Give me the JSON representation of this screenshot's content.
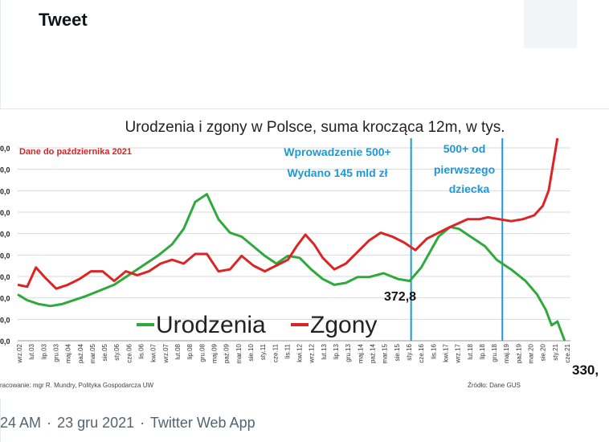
{
  "header": {
    "title": "Tweet"
  },
  "chart_data": {
    "type": "line",
    "title": "Urodzenia i zgony w Polsce, suma krocząca 12m, w tys.",
    "note": "Dane do października 2021",
    "annotations": {
      "policy1": [
        "Wprowadzenie 500+",
        "Wydano 145 mld zł"
      ],
      "policy2": [
        "500+ od",
        "pierwszego",
        "dziecka"
      ],
      "value_low_2016": "372,8",
      "value_end": "330,"
    },
    "x_labels": [
      "wrz.02",
      "lut.03",
      "lip.03",
      "gru.03",
      "maj.04",
      "paź.04",
      "mar.05",
      "sie.05",
      "sty.06",
      "cze.06",
      "lis.06",
      "kwi.07",
      "wrz.07",
      "lut.08",
      "lip.08",
      "gru.08",
      "maj.09",
      "paź.09",
      "mar.10",
      "sie.10",
      "sty.11",
      "cze.11",
      "lis.11",
      "kwi.12",
      "wrz.12",
      "lut.13",
      "lip.13",
      "gru.13",
      "maj.14",
      "paź.14",
      "mar.15",
      "sie.15",
      "sty.16",
      "cze.16",
      "lis.16",
      "kwi.17",
      "wrz.17",
      "lut.18",
      "lip.18",
      "gru.18",
      "maj.19",
      "paź.19",
      "mar.20",
      "sie.20",
      "sty.21",
      "cze.21"
    ],
    "y_tick_labels": [
      "0,0",
      "0,0",
      "0,0",
      "0,0",
      "0,0",
      "0,0",
      "0,0",
      "0,0",
      "0,0",
      "0,0"
    ],
    "x_start": 2002.67,
    "x_end": 2021.75,
    "ylim": [
      330,
      430
    ],
    "vertical_lines": [
      2016.25,
      2019.4
    ],
    "legend": {
      "placement": "bottom-left"
    },
    "series": [
      {
        "name": "Urodzenia",
        "color": "#2eaa3c",
        "points": [
          [
            2002.67,
            354
          ],
          [
            2003.0,
            351
          ],
          [
            2003.4,
            349
          ],
          [
            2003.8,
            348
          ],
          [
            2004.2,
            349
          ],
          [
            2004.6,
            351
          ],
          [
            2005.0,
            353
          ],
          [
            2005.5,
            356
          ],
          [
            2006.0,
            359
          ],
          [
            2006.5,
            364
          ],
          [
            2007.0,
            369
          ],
          [
            2007.5,
            374
          ],
          [
            2008.0,
            380
          ],
          [
            2008.4,
            388
          ],
          [
            2008.8,
            402
          ],
          [
            2009.2,
            406
          ],
          [
            2009.6,
            393
          ],
          [
            2010.0,
            386
          ],
          [
            2010.4,
            384
          ],
          [
            2010.8,
            379
          ],
          [
            2011.2,
            374
          ],
          [
            2011.6,
            370
          ],
          [
            2012.0,
            374
          ],
          [
            2012.4,
            373
          ],
          [
            2012.8,
            367
          ],
          [
            2013.2,
            362
          ],
          [
            2013.6,
            359
          ],
          [
            2014.0,
            360
          ],
          [
            2014.4,
            363
          ],
          [
            2014.8,
            363
          ],
          [
            2015.3,
            365
          ],
          [
            2015.8,
            362
          ],
          [
            2016.2,
            361
          ],
          [
            2016.6,
            368
          ],
          [
            2016.9,
            376
          ],
          [
            2017.2,
            384
          ],
          [
            2017.6,
            389
          ],
          [
            2017.9,
            388
          ],
          [
            2018.3,
            384
          ],
          [
            2018.8,
            379
          ],
          [
            2019.2,
            372
          ],
          [
            2019.7,
            367
          ],
          [
            2020.2,
            361
          ],
          [
            2020.6,
            354
          ],
          [
            2020.9,
            346
          ],
          [
            2021.1,
            338
          ],
          [
            2021.3,
            340
          ],
          [
            2021.55,
            330
          ]
        ]
      },
      {
        "name": "Zgony",
        "color": "#dd2424",
        "points": [
          [
            2002.67,
            359
          ],
          [
            2003.0,
            358
          ],
          [
            2003.3,
            368
          ],
          [
            2003.6,
            363
          ],
          [
            2004.0,
            357
          ],
          [
            2004.4,
            359
          ],
          [
            2004.8,
            362
          ],
          [
            2005.2,
            366
          ],
          [
            2005.6,
            366
          ],
          [
            2006.0,
            361
          ],
          [
            2006.4,
            366
          ],
          [
            2006.8,
            364
          ],
          [
            2007.2,
            366
          ],
          [
            2007.6,
            370
          ],
          [
            2008.0,
            372
          ],
          [
            2008.4,
            370
          ],
          [
            2008.8,
            375
          ],
          [
            2009.2,
            375
          ],
          [
            2009.6,
            366
          ],
          [
            2010.0,
            367
          ],
          [
            2010.4,
            374
          ],
          [
            2010.8,
            369
          ],
          [
            2011.2,
            366
          ],
          [
            2011.6,
            369
          ],
          [
            2012.0,
            372
          ],
          [
            2012.3,
            379
          ],
          [
            2012.6,
            385
          ],
          [
            2012.9,
            380
          ],
          [
            2013.2,
            373
          ],
          [
            2013.6,
            367
          ],
          [
            2014.0,
            370
          ],
          [
            2014.4,
            376
          ],
          [
            2014.8,
            382
          ],
          [
            2015.2,
            386
          ],
          [
            2015.6,
            384
          ],
          [
            2016.0,
            381
          ],
          [
            2016.4,
            377
          ],
          [
            2016.8,
            383
          ],
          [
            2017.2,
            386
          ],
          [
            2017.6,
            389
          ],
          [
            2017.9,
            391
          ],
          [
            2018.2,
            393
          ],
          [
            2018.6,
            393
          ],
          [
            2018.9,
            394
          ],
          [
            2019.3,
            393
          ],
          [
            2019.7,
            392
          ],
          [
            2020.1,
            393
          ],
          [
            2020.5,
            395
          ],
          [
            2020.8,
            400
          ],
          [
            2021.0,
            408
          ],
          [
            2021.3,
            435
          ]
        ]
      }
    ],
    "footer_left": "racowanie: mgr R. Mundry, Polityka Gospodarcza UW",
    "footer_right": "Źródło: Dane GUS"
  },
  "tweet_meta": {
    "time": "24 AM",
    "sep1": "·",
    "date": "23 gru 2021",
    "sep2": "·",
    "source": "Twitter Web App"
  }
}
